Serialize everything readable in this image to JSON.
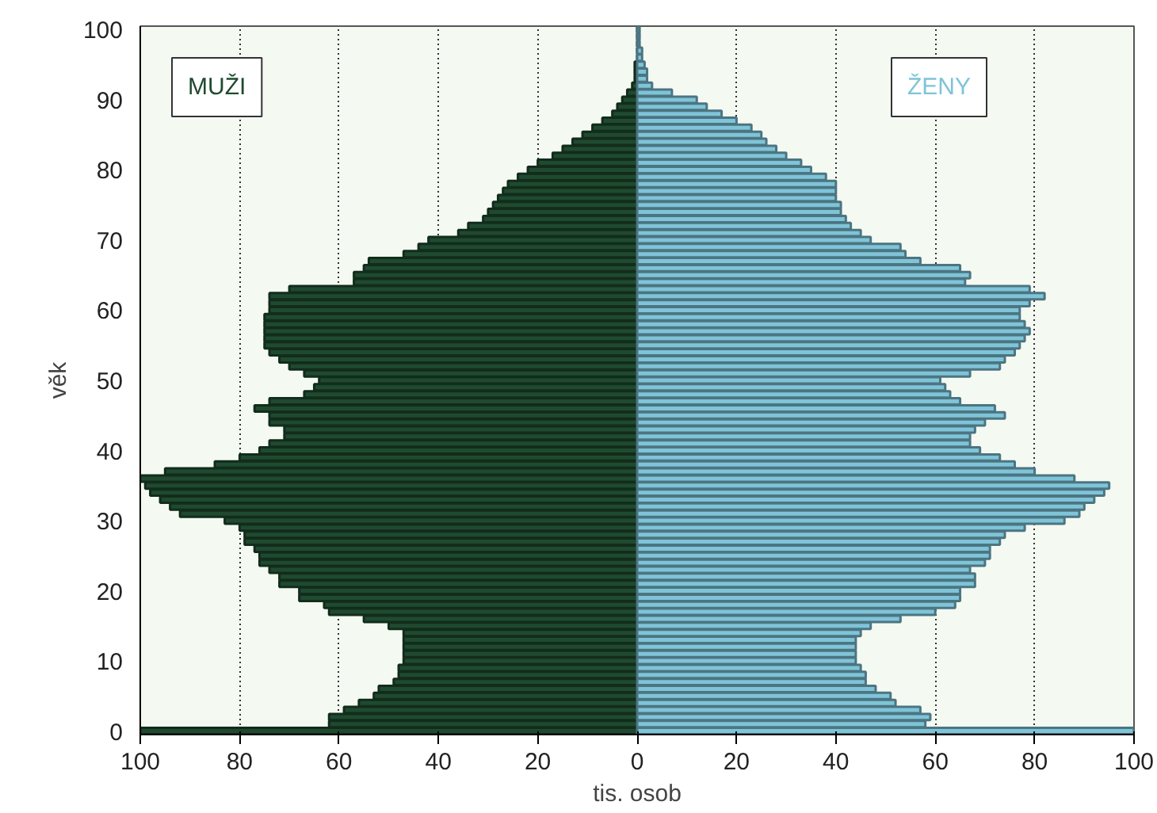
{
  "chart_data": {
    "type": "bar",
    "orientation": "horizontal",
    "xlabel": "tis. osob",
    "ylabel": "věk",
    "categories": [
      "100",
      null,
      null,
      null,
      null,
      null,
      null,
      null,
      null,
      null,
      "90",
      null,
      null,
      null,
      null,
      null,
      null,
      null,
      null,
      null,
      "80",
      null,
      null,
      null,
      null,
      null,
      null,
      null,
      null,
      null,
      "70",
      null,
      null,
      null,
      null,
      null,
      null,
      null,
      null,
      null,
      "60",
      null,
      null,
      null,
      null,
      null,
      null,
      null,
      null,
      null,
      "50",
      null,
      null,
      null,
      null,
      null,
      null,
      null,
      null,
      null,
      "40",
      null,
      null,
      null,
      null,
      null,
      null,
      null,
      null,
      null,
      "30",
      null,
      null,
      null,
      null,
      null,
      null,
      null,
      null,
      null,
      "20",
      null,
      null,
      null,
      null,
      null,
      null,
      null,
      null,
      null,
      "10",
      null,
      null,
      null,
      null,
      null,
      null,
      null,
      null,
      null,
      "0"
    ],
    "series": [
      {
        "name": "MUŽI",
        "color": "#1f4a2f",
        "values": [
          null,
          null,
          null,
          null,
          null,
          -0.5,
          -0.5,
          -0.5,
          -1,
          -2,
          -3,
          -4,
          -5,
          -7,
          -9,
          -11,
          -13,
          -15,
          -17,
          -20,
          -22,
          -24,
          -26,
          -27,
          -28,
          -29,
          -30,
          -31,
          -34,
          -36,
          -42,
          -44,
          -47,
          -54,
          -55,
          -57,
          -57,
          -70,
          -74,
          -74,
          -74,
          -75,
          -75,
          -75,
          -75,
          -75,
          -74,
          -72,
          -70,
          -67,
          -64,
          -65,
          -67,
          -74,
          -77,
          -74,
          -74,
          -71,
          -71,
          -74,
          -76,
          -80,
          -85,
          -95,
          -100,
          -99,
          -98,
          -96,
          -94,
          -92,
          -83,
          -80,
          -79,
          -79,
          -77,
          -76,
          -76,
          -74,
          -72,
          -72,
          -68,
          -68,
          -63,
          -62,
          -55,
          -50,
          -47,
          -47,
          -47,
          -47,
          -47,
          -48,
          -48,
          -49,
          -52,
          -53,
          -56,
          -59,
          -62,
          -62,
          -100
        ]
      },
      {
        "name": "ŽENY",
        "color": "#7fc4d8",
        "values": [
          0.5,
          0.5,
          0.5,
          1,
          1,
          1.5,
          2,
          2,
          3,
          7,
          12,
          14,
          17,
          20,
          23,
          25,
          26,
          28,
          30,
          33,
          35,
          38,
          40,
          40,
          40,
          41,
          41,
          42,
          43,
          45,
          47,
          53,
          54,
          57,
          65,
          67,
          66,
          79,
          82,
          79,
          77,
          77,
          78,
          79,
          78,
          77,
          76,
          74,
          73,
          67,
          61,
          62,
          63,
          65,
          72,
          74,
          70,
          68,
          67,
          67,
          69,
          73,
          76,
          80,
          88,
          95,
          94,
          92,
          90,
          89,
          86,
          78,
          74,
          73,
          71,
          71,
          70,
          67,
          68,
          68,
          65,
          65,
          64,
          60,
          53,
          47,
          45,
          44,
          44,
          44,
          44,
          45,
          46,
          46,
          48,
          51,
          52,
          57,
          59,
          58,
          100
        ]
      }
    ],
    "xlim": [
      -100,
      100
    ],
    "xticks": [
      {
        "value": -100,
        "label": "100"
      },
      {
        "value": -80,
        "label": "80"
      },
      {
        "value": -60,
        "label": "60"
      },
      {
        "value": -40,
        "label": "40"
      },
      {
        "value": -20,
        "label": "20"
      },
      0,
      20,
      40,
      60,
      80,
      100
    ],
    "grid": "x",
    "stacked": true
  }
}
